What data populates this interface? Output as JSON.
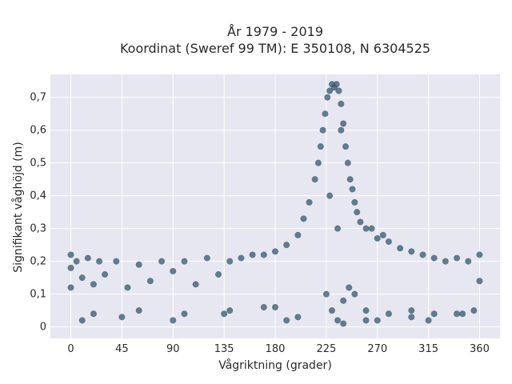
{
  "chart_data": {
    "type": "scatter",
    "title_line1": "År 1979 - 2019",
    "title_line2": "Koordinat (Sweref 99 TM): E 350108, N 6304525",
    "xlabel": "Vågriktning (grader)",
    "ylabel": "Signifikant våghöjd (m)",
    "xlim": [
      -18,
      378
    ],
    "ylim": [
      -0.035,
      0.77
    ],
    "xticks": [
      0,
      45,
      90,
      135,
      180,
      225,
      270,
      315,
      360
    ],
    "xtick_labels": [
      "0",
      "45",
      "90",
      "135",
      "180",
      "225",
      "270",
      "315",
      "360"
    ],
    "yticks": [
      0,
      0.1,
      0.2,
      0.3,
      0.4,
      0.5,
      0.6,
      0.7
    ],
    "ytick_labels": [
      "0",
      "0,1",
      "0,2",
      "0,3",
      "0,4",
      "0,5",
      "0,6",
      "0,7"
    ],
    "grid": true,
    "marker_color": "#34566b",
    "plot_background": "#e6e7f0",
    "x": [
      0,
      0,
      0,
      5,
      10,
      15,
      20,
      25,
      30,
      40,
      50,
      60,
      70,
      80,
      90,
      100,
      110,
      120,
      130,
      140,
      150,
      160,
      170,
      180,
      190,
      200,
      205,
      210,
      215,
      218,
      220,
      222,
      224,
      226,
      228,
      230,
      232,
      234,
      236,
      238,
      240,
      242,
      244,
      246,
      248,
      250,
      252,
      255,
      260,
      265,
      270,
      275,
      280,
      290,
      300,
      310,
      320,
      330,
      340,
      350,
      360,
      360,
      225,
      230,
      235,
      240,
      245,
      235,
      238,
      228,
      250,
      260,
      280,
      300,
      320,
      340,
      355,
      20,
      60,
      100,
      140,
      180,
      200,
      260,
      300,
      10,
      45,
      90,
      135,
      170,
      190,
      240,
      270,
      315,
      345
    ],
    "y": [
      0.12,
      0.18,
      0.22,
      0.2,
      0.15,
      0.21,
      0.13,
      0.2,
      0.16,
      0.2,
      0.12,
      0.19,
      0.14,
      0.2,
      0.17,
      0.2,
      0.13,
      0.21,
      0.16,
      0.2,
      0.21,
      0.22,
      0.22,
      0.23,
      0.25,
      0.28,
      0.33,
      0.38,
      0.45,
      0.5,
      0.55,
      0.6,
      0.65,
      0.7,
      0.72,
      0.74,
      0.73,
      0.74,
      0.72,
      0.68,
      0.62,
      0.55,
      0.5,
      0.45,
      0.42,
      0.38,
      0.35,
      0.32,
      0.3,
      0.3,
      0.27,
      0.28,
      0.26,
      0.24,
      0.23,
      0.22,
      0.21,
      0.2,
      0.21,
      0.2,
      0.22,
      0.14,
      0.1,
      0.05,
      0.02,
      0.08,
      0.12,
      0.3,
      0.6,
      0.4,
      0.1,
      0.05,
      0.04,
      0.05,
      0.04,
      0.04,
      0.05,
      0.04,
      0.05,
      0.04,
      0.05,
      0.06,
      0.03,
      0.02,
      0.03,
      0.02,
      0.03,
      0.02,
      0.04,
      0.06,
      0.02,
      0.01,
      0.02,
      0.02,
      0.04
    ]
  }
}
